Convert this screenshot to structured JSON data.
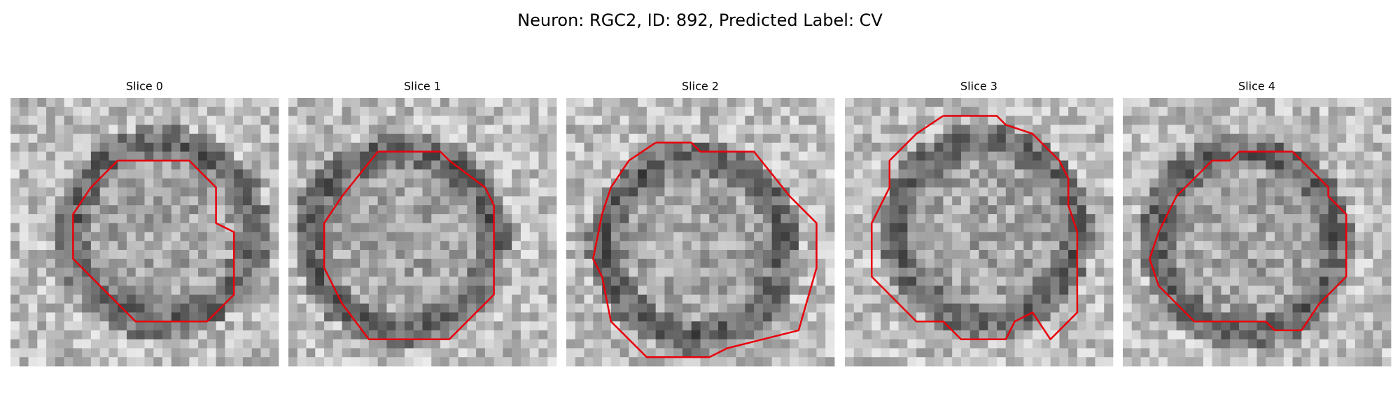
{
  "title": "Neuron: RGC2, ID: 892, Predicted Label: CV",
  "panels": [
    {
      "title": "Slice 0"
    },
    {
      "title": "Slice 1"
    },
    {
      "title": "Slice 2"
    },
    {
      "title": "Slice 3"
    },
    {
      "title": "Slice 4"
    }
  ]
}
